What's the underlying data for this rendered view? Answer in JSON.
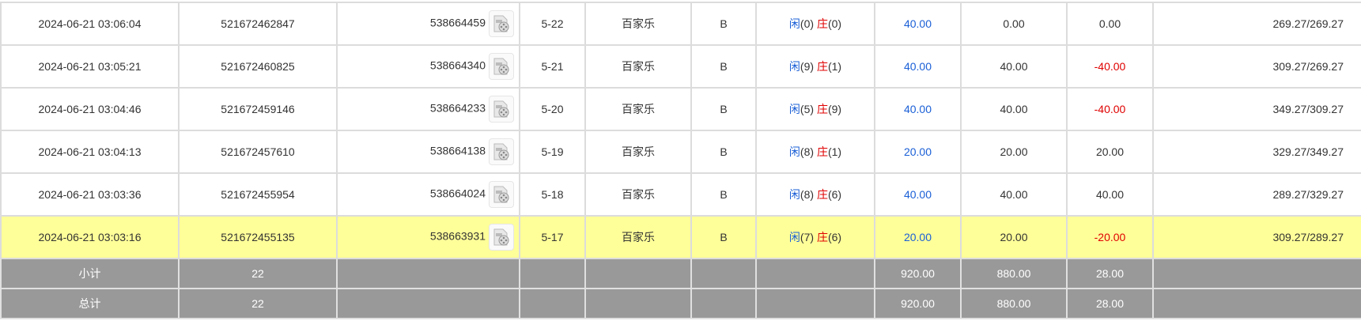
{
  "rows": [
    {
      "time": "2024-06-21 03:06:04",
      "bet_id": "521672462847",
      "round_id": "538664459",
      "table": "5-22",
      "game": "百家乐",
      "type": "B",
      "player_label": "闲",
      "player_val": "(0)",
      "banker_label": "庄",
      "banker_val": "(0)",
      "bet": "40.00",
      "valid": "0.00",
      "win": "0.00",
      "win_negative": false,
      "balance": "269.27/269.27",
      "highlight": false
    },
    {
      "time": "2024-06-21 03:05:21",
      "bet_id": "521672460825",
      "round_id": "538664340",
      "table": "5-21",
      "game": "百家乐",
      "type": "B",
      "player_label": "闲",
      "player_val": "(9)",
      "banker_label": "庄",
      "banker_val": "(1)",
      "bet": "40.00",
      "valid": "40.00",
      "win": "-40.00",
      "win_negative": true,
      "balance": "309.27/269.27",
      "highlight": false
    },
    {
      "time": "2024-06-21 03:04:46",
      "bet_id": "521672459146",
      "round_id": "538664233",
      "table": "5-20",
      "game": "百家乐",
      "type": "B",
      "player_label": "闲",
      "player_val": "(5)",
      "banker_label": "庄",
      "banker_val": "(9)",
      "bet": "40.00",
      "valid": "40.00",
      "win": "-40.00",
      "win_negative": true,
      "balance": "349.27/309.27",
      "highlight": false
    },
    {
      "time": "2024-06-21 03:04:13",
      "bet_id": "521672457610",
      "round_id": "538664138",
      "table": "5-19",
      "game": "百家乐",
      "type": "B",
      "player_label": "闲",
      "player_val": "(8)",
      "banker_label": "庄",
      "banker_val": "(1)",
      "bet": "20.00",
      "valid": "20.00",
      "win": "20.00",
      "win_negative": false,
      "balance": "329.27/349.27",
      "highlight": false
    },
    {
      "time": "2024-06-21 03:03:36",
      "bet_id": "521672455954",
      "round_id": "538664024",
      "table": "5-18",
      "game": "百家乐",
      "type": "B",
      "player_label": "闲",
      "player_val": "(8)",
      "banker_label": "庄",
      "banker_val": "(6)",
      "bet": "40.00",
      "valid": "40.00",
      "win": "40.00",
      "win_negative": false,
      "balance": "289.27/329.27",
      "highlight": false
    },
    {
      "time": "2024-06-21 03:03:16",
      "bet_id": "521672455135",
      "round_id": "538663931",
      "table": "5-17",
      "game": "百家乐",
      "type": "B",
      "player_label": "闲",
      "player_val": "(7)",
      "banker_label": "庄",
      "banker_val": "(6)",
      "bet": "20.00",
      "valid": "20.00",
      "win": "-20.00",
      "win_negative": true,
      "balance": "309.27/289.27",
      "highlight": true
    }
  ],
  "summary": [
    {
      "label": "小计",
      "count": "22",
      "bet": "920.00",
      "valid": "880.00",
      "win": "28.00"
    },
    {
      "label": "总计",
      "count": "22",
      "bet": "920.00",
      "valid": "880.00",
      "win": "28.00"
    }
  ],
  "icons": {
    "replay": "video-replay-icon"
  },
  "colors": {
    "highlight": "#ffff99",
    "summary_bg": "#999999",
    "player": "#1a5fd6",
    "banker": "#e00000",
    "negative": "#e00000"
  }
}
